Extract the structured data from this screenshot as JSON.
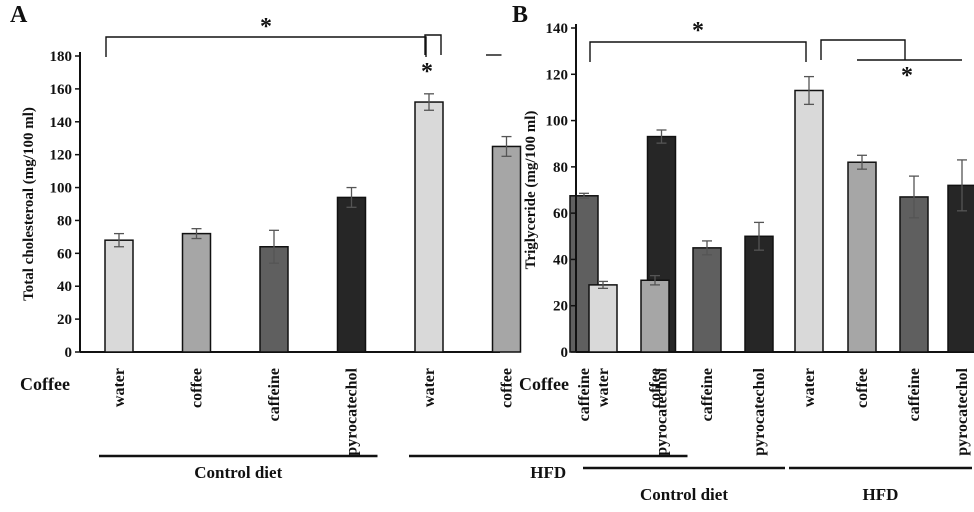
{
  "row_label": "Coffee",
  "colors": {
    "water": "#d9d9d9",
    "coffee": "#a6a6a6",
    "caffeine": "#5f5f5f",
    "pyrocatechol": "#262626"
  },
  "chart_data": [
    {
      "panel": "A",
      "type": "bar",
      "ylabel": "Total cholesteroal (mg/100 ml)",
      "ylim": [
        0,
        180
      ],
      "yticks": [
        0,
        20,
        40,
        60,
        80,
        100,
        120,
        140,
        160,
        180
      ],
      "categories": [
        "water",
        "coffee",
        "caffeine",
        "pyrocatechol",
        "water",
        "coffee",
        "caffeine",
        "pyrocatechol"
      ],
      "values": [
        68,
        72,
        64,
        94,
        152,
        125,
        95,
        131
      ],
      "errors": [
        4,
        3,
        10,
        6,
        5,
        6,
        1.5,
        4
      ],
      "groups": [
        {
          "label": "Control diet",
          "start": 0,
          "end": 3
        },
        {
          "label": "HFD",
          "start": 4,
          "end": 7
        }
      ],
      "significance": [
        {
          "from": 0,
          "to": 4,
          "label": "*"
        },
        {
          "from": 4,
          "to": [
            5,
            6,
            7
          ],
          "label": "*"
        }
      ]
    },
    {
      "panel": "B",
      "type": "bar",
      "ylabel": "Triglyceride  (mg/100 ml)",
      "ylim": [
        0,
        140
      ],
      "yticks": [
        0,
        20,
        40,
        60,
        80,
        100,
        120,
        140
      ],
      "categories": [
        "water",
        "coffee",
        "caffeine",
        "pyrocatechol",
        "water",
        "coffee",
        "caffeine",
        "pyrocatechol"
      ],
      "values": [
        29,
        31,
        45,
        50,
        113,
        82,
        67,
        72
      ],
      "errors": [
        1.5,
        2,
        3,
        6,
        6,
        3,
        9,
        11
      ],
      "groups": [
        {
          "label": "Control diet",
          "start": 0,
          "end": 3
        },
        {
          "label": "HFD",
          "start": 4,
          "end": 7
        }
      ],
      "significance": [
        {
          "from": 0,
          "to": 4,
          "label": "*"
        },
        {
          "from": 4,
          "to": [
            5,
            6,
            7
          ],
          "label": "*"
        }
      ]
    }
  ]
}
